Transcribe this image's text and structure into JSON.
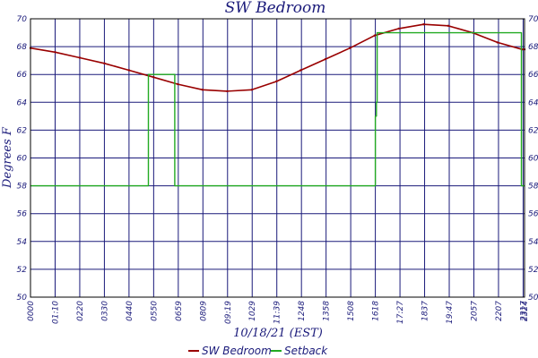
{
  "chart_data": {
    "type": "line",
    "title": "SW Bedroom",
    "xlabel": "10/18/21 (EST)",
    "ylabel": "Degrees F",
    "ylim": [
      50,
      70
    ],
    "yticks": [
      "50",
      "52",
      "54",
      "56",
      "58",
      "60",
      "62",
      "64",
      "66",
      "68",
      "70"
    ],
    "xticks": [
      "0000",
      "01:10",
      "0220",
      "0330",
      "0440",
      "0550",
      "0659",
      "0809",
      "09:19",
      "1029",
      "11:39",
      "1248",
      "1358",
      "1508",
      "1618",
      "17:27",
      "1837",
      "19:47",
      "2057",
      "2207",
      "2317",
      "2324"
    ],
    "xlim_minutes": [
      0,
      1404
    ],
    "grid": true,
    "legend_position": "bottom",
    "series": [
      {
        "name": "SW Bedroom",
        "color": "#990000",
        "x": [
          "00:00",
          "01:10",
          "02:20",
          "03:30",
          "04:40",
          "05:50",
          "06:59",
          "08:09",
          "09:19",
          "10:29",
          "11:39",
          "12:48",
          "13:58",
          "15:08",
          "16:18",
          "17:27",
          "18:37",
          "19:47",
          "20:57",
          "22:07",
          "23:17",
          "23:24"
        ],
        "values": [
          67.9,
          67.6,
          67.2,
          66.8,
          66.3,
          65.8,
          65.3,
          64.9,
          64.8,
          64.9,
          65.5,
          66.3,
          67.1,
          67.9,
          68.8,
          69.3,
          69.6,
          69.5,
          69.0,
          68.3,
          67.8,
          67.8
        ]
      },
      {
        "name": "Setback",
        "color": "#22aa22",
        "step": true,
        "x": [
          "00:00",
          "05:35",
          "05:35",
          "06:50",
          "06:50",
          "16:20",
          "16:20",
          "16:23",
          "16:23",
          "16:25",
          "16:25",
          "23:15",
          "23:15",
          "23:24"
        ],
        "values": [
          58,
          58,
          66,
          66,
          58,
          58,
          63,
          63,
          64,
          64,
          69,
          69,
          58,
          58
        ]
      }
    ]
  }
}
